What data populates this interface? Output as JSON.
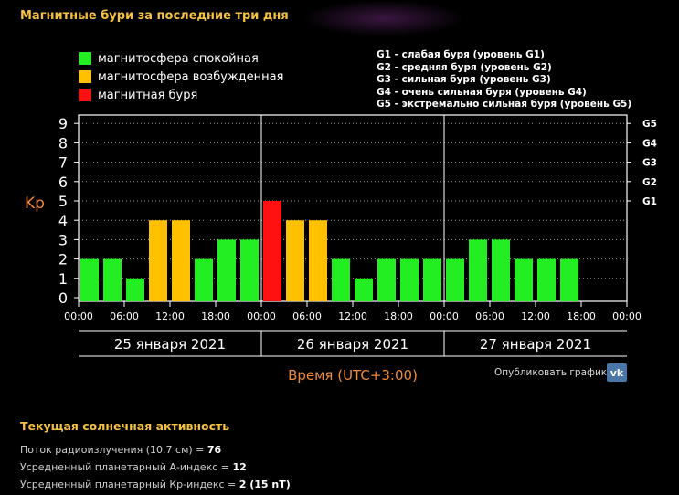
{
  "header": {
    "title": "Магнитные бури за последние три дня"
  },
  "legend": [
    {
      "label": "магнитосфера спокойная",
      "color": "#22ee22"
    },
    {
      "label": "магнитосфера возбужденная",
      "color": "#ffc000"
    },
    {
      "label": "магнитная буря",
      "color": "#ff1111"
    }
  ],
  "g_levels": [
    "G1 - слабая буря (уровень G1)",
    "G2 - средняя буря (уровень G2)",
    "G3 - сильная буря (уровень G3)",
    "G4 - очень сильная буря (уровень G4)",
    "G5 - экстремально сильная буря (уровень G5)"
  ],
  "chart_data": {
    "type": "bar",
    "ylabel": "Kp",
    "xlabel": "Время (UTC+3:00)",
    "ylim": [
      0,
      9
    ],
    "y_ticks": [
      "0",
      "1",
      "2",
      "3",
      "4",
      "5",
      "6",
      "7",
      "8",
      "9"
    ],
    "g_ticks": [
      {
        "label": "G1",
        "value": 5
      },
      {
        "label": "G2",
        "value": 6
      },
      {
        "label": "G3",
        "value": 7
      },
      {
        "label": "G4",
        "value": 8
      },
      {
        "label": "G5",
        "value": 9
      }
    ],
    "x_ticks": [
      "00:00",
      "06:00",
      "12:00",
      "18:00",
      "00:00",
      "06:00",
      "12:00",
      "18:00",
      "00:00",
      "06:00",
      "12:00",
      "18:00",
      "00:00"
    ],
    "days": [
      "25 января 2021",
      "26 января 2021",
      "27 января 2021"
    ],
    "values": [
      2,
      2,
      1,
      4,
      4,
      2,
      3,
      3,
      5,
      4,
      4,
      2,
      1,
      2,
      2,
      2,
      2,
      3,
      3,
      2,
      2,
      2
    ],
    "level_colors": {
      "quiet": "#22ee22",
      "active": "#ffc000",
      "storm": "#ff1111"
    },
    "grid": true
  },
  "publish": {
    "label": "Опубликовать график:",
    "vk_icon": "vk-icon"
  },
  "solar": {
    "title": "Текущая солнечная активность",
    "flux_label": "Поток радиоизлучения (10.7 см) = ",
    "flux_value": "76",
    "a_label": "Усредненный планетарный А-индекс = ",
    "a_value": "12",
    "kp_label": "Усредненный планетарный Кр-индекс = ",
    "kp_value": "2 (15 nT)"
  }
}
